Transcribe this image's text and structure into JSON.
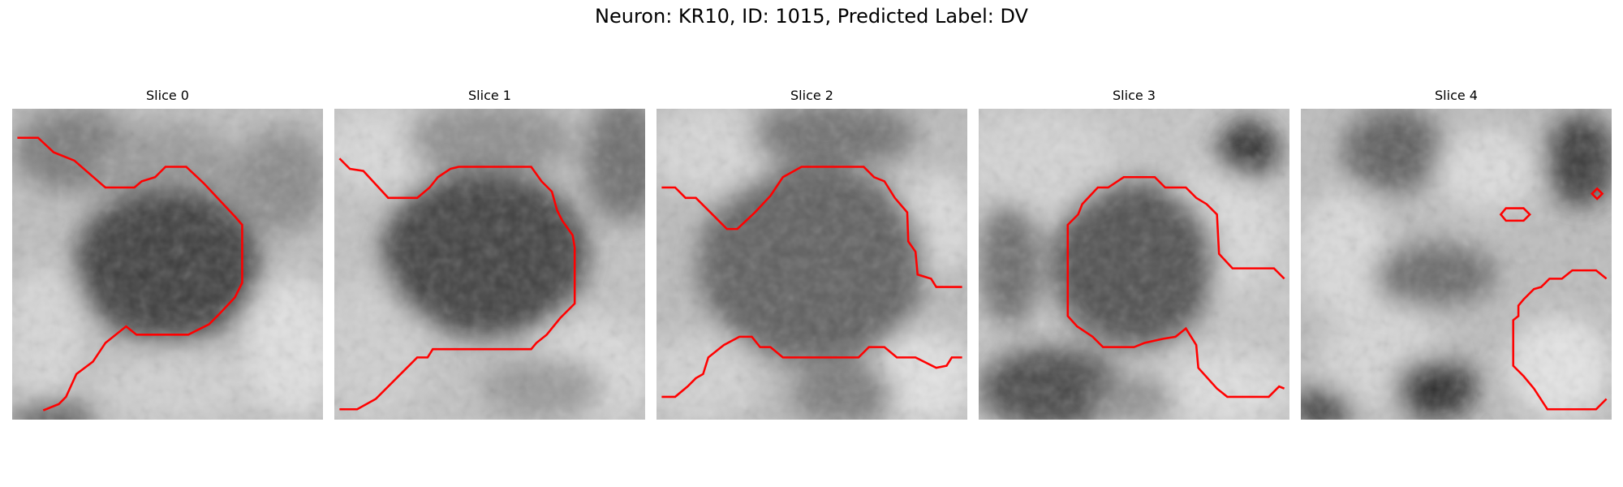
{
  "figure": {
    "title": "Neuron: KR10, ID: 1015, Predicted Label: DV"
  },
  "panels": [
    {
      "title": "Slice 0"
    },
    {
      "title": "Slice 1"
    },
    {
      "title": "Slice 2"
    },
    {
      "title": "Slice 3"
    },
    {
      "title": "Slice 4"
    }
  ],
  "colors": {
    "contour": "#ff0000",
    "background": "#ffffff"
  }
}
